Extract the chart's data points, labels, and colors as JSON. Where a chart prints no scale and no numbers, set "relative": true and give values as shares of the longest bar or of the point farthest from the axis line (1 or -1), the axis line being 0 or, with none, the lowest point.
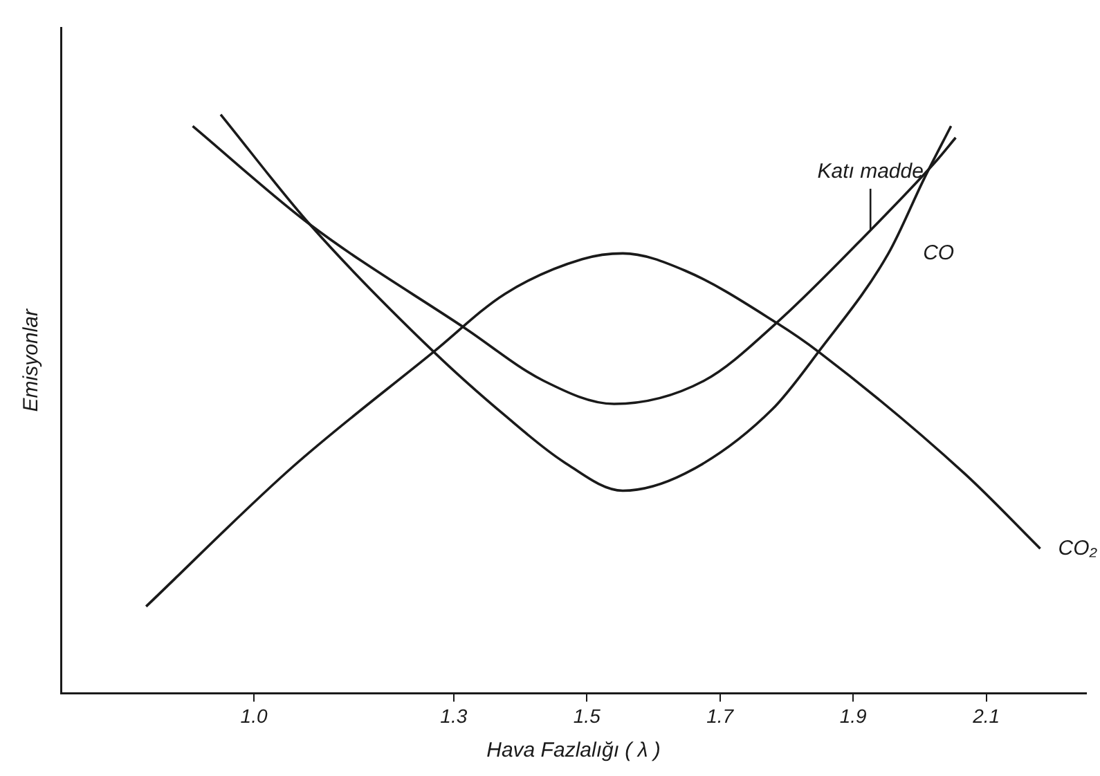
{
  "chart_data": {
    "type": "line",
    "relative": true,
    "xlabel": "Hava Fazlalığı ( λ )",
    "ylabel": "Emisyonlar",
    "xlim": [
      0.71,
      2.25
    ],
    "xticks": [
      {
        "value": 1,
        "label": "1.0"
      },
      1.3,
      1.5,
      1.7,
      1.9,
      2.1
    ],
    "grid": false,
    "legend": false,
    "marker": "none",
    "line_style": "solid",
    "series": [
      {
        "name": "Katı madde",
        "color": "#1a1a1a",
        "x": [
          0.908,
          1.084,
          1.318,
          1.435,
          1.541,
          1.676,
          1.785,
          1.926,
          2.025,
          2.054
        ],
        "values": [
          0.98,
          0.81,
          0.63,
          0.54,
          0.5,
          0.54,
          0.64,
          0.8,
          0.92,
          0.96
        ]
      },
      {
        "name": "CO",
        "color": "#1a1a1a",
        "x": [
          0.95,
          1.084,
          1.27,
          1.377,
          1.465,
          1.554,
          1.648,
          1.778,
          1.848,
          1.953,
          2.007,
          2.047
        ],
        "values": [
          1,
          0.81,
          0.59,
          0.48,
          0.4,
          0.35,
          0.38,
          0.49,
          0.59,
          0.76,
          0.89,
          0.98
        ]
      },
      {
        "name": "CO₂",
        "color": "#1a1a1a",
        "x": [
          0.838,
          1.057,
          1.27,
          1.377,
          1.493,
          1.554,
          1.648,
          1.785,
          1.848,
          2.067,
          2.181
        ],
        "values": [
          0.15,
          0.39,
          0.59,
          0.69,
          0.75,
          0.76,
          0.73,
          0.64,
          0.59,
          0.38,
          0.25
        ]
      }
    ]
  }
}
